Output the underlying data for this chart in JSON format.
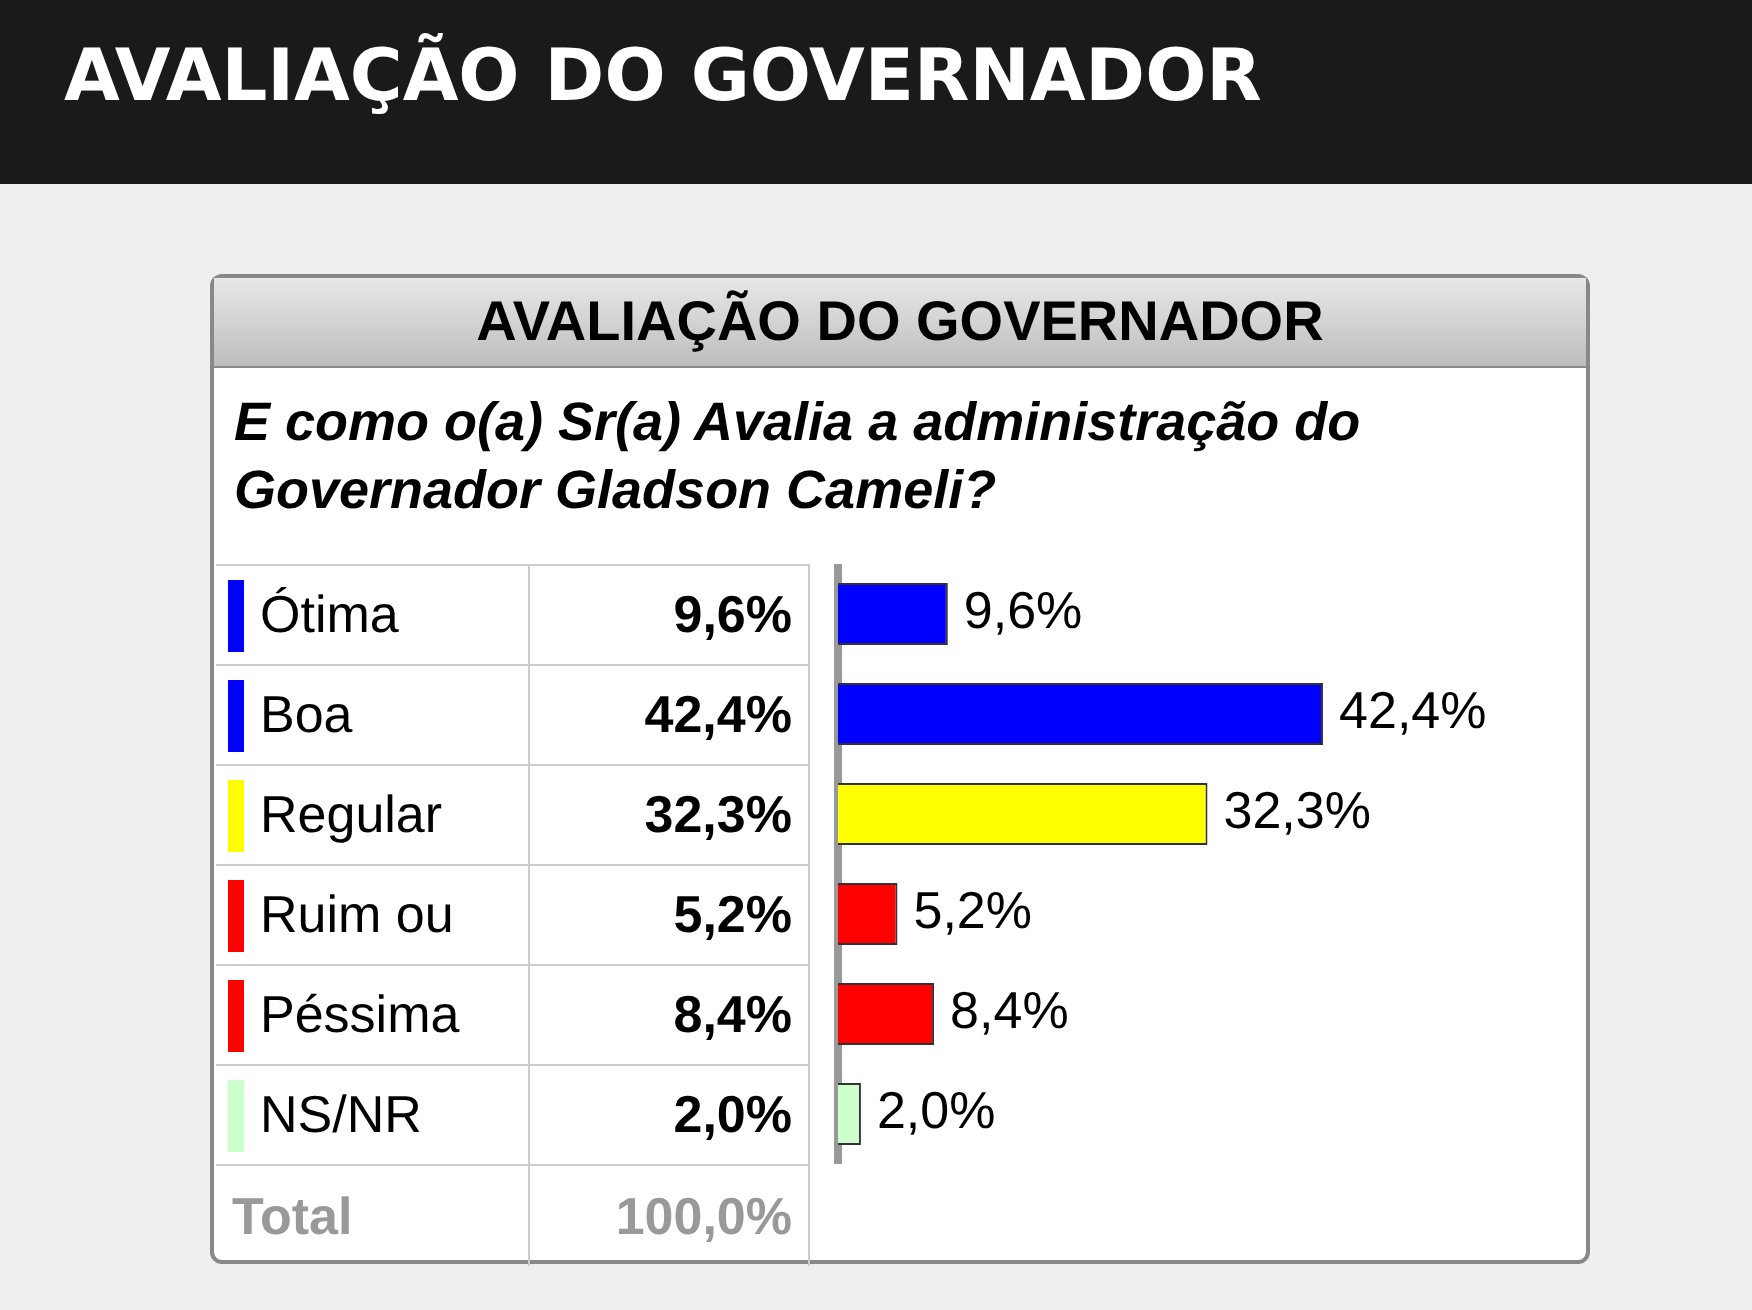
{
  "chart_data": {
    "type": "bar",
    "orientation": "horizontal",
    "title": "AVALIAÇÃO DO GOVERNADOR",
    "subtitle": "AVALIAÇÃO DO GOVERNADOR",
    "annotations": [
      "E como o(a) Sr(a) Avalia a administração do Governador Gladson Cameli?",
      "Total",
      "100,0%"
    ],
    "categories": [
      "Ótima",
      "Boa",
      "Regular",
      "Ruim ou",
      "Péssima",
      "NS/NR"
    ],
    "values": [
      9.6,
      42.4,
      32.3,
      5.2,
      8.4,
      2.0
    ],
    "colors": [
      "#0000ff",
      "#0000ff",
      "#ffff00",
      "#ff0000",
      "#ff0000",
      "#ccffcc"
    ],
    "value_labels": [
      "9,6%",
      "42,4%",
      "32,3%",
      "5,2%",
      "8,4%",
      "2,0%"
    ]
  }
}
